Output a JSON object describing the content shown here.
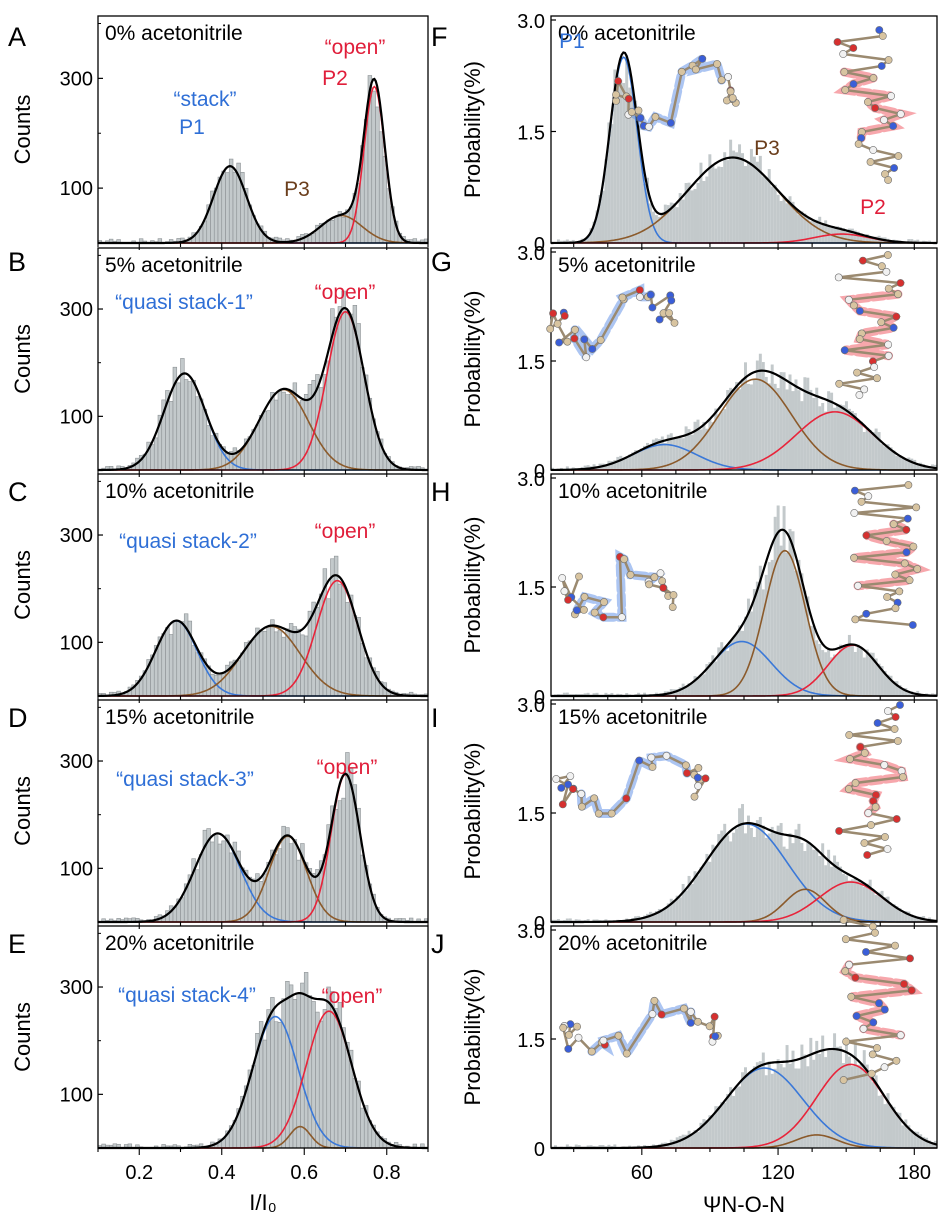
{
  "colors": {
    "hist_fill": "#c3c9cb",
    "hist_outline": "#8c9194",
    "total": "#000000",
    "blue": "#3a78d8",
    "red": "#e8243a",
    "brown": "#8b5a2b",
    "blue_text": "#2f6fd6",
    "red_text": "#e01e3a",
    "brown_text": "#6b3e1c"
  },
  "left_axes": {
    "ylabel": "Counts",
    "xlabel": "I/I₀",
    "yticks": [
      100,
      300
    ],
    "xticks": [
      "0.2",
      "0.4",
      "0.6",
      "0.8"
    ],
    "xlim": [
      0.1,
      0.9
    ],
    "ylim": [
      0,
      400
    ]
  },
  "right_axes": {
    "ylabel": "Probability(%)",
    "xlabel": "ΨN-O-N",
    "yticks": [
      "0",
      "1.5",
      "3.0"
    ],
    "xticks": [
      "60",
      "120",
      "180"
    ],
    "xlim": [
      20,
      190
    ],
    "ylim": [
      0,
      3.0
    ]
  },
  "chart_data": [
    {
      "panel": "A",
      "type": "bar",
      "condition": "0%  acetonitrile",
      "title": "0%  acetonitrile",
      "xlabel": "I/I₀",
      "ylabel": "Counts",
      "series": [
        {
          "name": "P1",
          "peak_x": 0.42,
          "sigma": 0.04,
          "amplitude": 140,
          "color": "blue"
        },
        {
          "name": "P3",
          "peak_x": 0.69,
          "sigma": 0.05,
          "amplitude": 50,
          "color": "brown"
        },
        {
          "name": "P2",
          "peak_x": 0.77,
          "sigma": 0.025,
          "amplitude": 285,
          "color": "red"
        }
      ],
      "annotations": [
        {
          "text": "“stack”",
          "color": "blue"
        },
        {
          "text": "P1",
          "color": "blue"
        },
        {
          "text": "P3",
          "color": "brown"
        },
        {
          "text": "“open”",
          "color": "red"
        },
        {
          "text": "P2",
          "color": "red"
        }
      ]
    },
    {
      "panel": "B",
      "type": "bar",
      "condition": "5%  acetonitrile",
      "title": "5%  acetonitrile",
      "xlabel": "I/I₀",
      "ylabel": "Counts",
      "series": [
        {
          "peak_x": 0.31,
          "sigma": 0.05,
          "amplitude": 180,
          "color": "blue"
        },
        {
          "peak_x": 0.55,
          "sigma": 0.06,
          "amplitude": 150,
          "color": "brown"
        },
        {
          "peak_x": 0.7,
          "sigma": 0.045,
          "amplitude": 295,
          "color": "red"
        }
      ],
      "annotations": [
        {
          "text": "“quasi stack-1”",
          "color": "blue"
        },
        {
          "text": "“open”",
          "color": "red"
        }
      ]
    },
    {
      "panel": "C",
      "type": "bar",
      "condition": "10%  acetonitrile",
      "title": "10%  acetonitrile",
      "xlabel": "I/I₀",
      "ylabel": "Counts",
      "series": [
        {
          "peak_x": 0.29,
          "sigma": 0.05,
          "amplitude": 140,
          "color": "blue"
        },
        {
          "peak_x": 0.52,
          "sigma": 0.07,
          "amplitude": 130,
          "color": "brown"
        },
        {
          "peak_x": 0.68,
          "sigma": 0.05,
          "amplitude": 215,
          "color": "red"
        }
      ],
      "annotations": [
        {
          "text": "“quasi stack-2”",
          "color": "blue"
        },
        {
          "text": "“open”",
          "color": "red"
        }
      ]
    },
    {
      "panel": "D",
      "type": "bar",
      "condition": "15%  acetonitrile",
      "title": "15%  acetonitrile",
      "xlabel": "I/I₀",
      "ylabel": "Counts",
      "series": [
        {
          "peak_x": 0.39,
          "sigma": 0.055,
          "amplitude": 165,
          "color": "blue"
        },
        {
          "peak_x": 0.56,
          "sigma": 0.045,
          "amplitude": 160,
          "color": "brown"
        },
        {
          "peak_x": 0.7,
          "sigma": 0.035,
          "amplitude": 275,
          "color": "red"
        }
      ],
      "annotations": [
        {
          "text": "“quasi stack-3”",
          "color": "blue"
        },
        {
          "text": "“open”",
          "color": "red"
        }
      ]
    },
    {
      "panel": "E",
      "type": "bar",
      "condition": "20%  acetonitrile",
      "title": "20%  acetonitrile",
      "xlabel": "I/I₀",
      "ylabel": "Counts",
      "series": [
        {
          "peak_x": 0.53,
          "sigma": 0.055,
          "amplitude": 245,
          "color": "blue"
        },
        {
          "peak_x": 0.59,
          "sigma": 0.025,
          "amplitude": 40,
          "color": "brown"
        },
        {
          "peak_x": 0.66,
          "sigma": 0.055,
          "amplitude": 255,
          "color": "red"
        }
      ],
      "annotations": [
        {
          "text": "“quasi stack-4”",
          "color": "blue"
        },
        {
          "text": "“open”",
          "color": "red"
        }
      ]
    },
    {
      "panel": "F",
      "type": "bar",
      "condition": "0%  acetonitrile",
      "title": "0%  acetonitrile",
      "xlabel": "ΨN-O-N",
      "ylabel": "Probability(%)",
      "series": [
        {
          "name": "P1",
          "peak_x": 52,
          "sigma": 6,
          "amplitude": 2.5,
          "color": "blue"
        },
        {
          "name": "P3",
          "peak_x": 100,
          "sigma": 20,
          "amplitude": 1.15,
          "color": "brown"
        },
        {
          "name": "P2",
          "peak_x": 148,
          "sigma": 12,
          "amplitude": 0.12,
          "color": "red"
        }
      ],
      "annotations": [
        {
          "text": "P1",
          "color": "blue"
        },
        {
          "text": "P3",
          "color": "brown"
        },
        {
          "text": "P2",
          "color": "red"
        }
      ]
    },
    {
      "panel": "G",
      "type": "bar",
      "condition": "5%  acetonitrile",
      "title": "5%  acetonitrile",
      "xlabel": "ΨN-O-N",
      "ylabel": "Probability(%)",
      "series": [
        {
          "peak_x": 70,
          "sigma": 14,
          "amplitude": 0.35,
          "color": "blue"
        },
        {
          "peak_x": 110,
          "sigma": 16,
          "amplitude": 1.25,
          "color": "brown"
        },
        {
          "peak_x": 145,
          "sigma": 17,
          "amplitude": 0.8,
          "color": "red"
        }
      ],
      "annotations": []
    },
    {
      "panel": "H",
      "type": "bar",
      "condition": "10%  acetonitrile",
      "title": "10%  acetonitrile",
      "xlabel": "ΨN-O-N",
      "ylabel": "Probability(%)",
      "series": [
        {
          "peak_x": 104,
          "sigma": 13,
          "amplitude": 0.75,
          "color": "blue"
        },
        {
          "peak_x": 123,
          "sigma": 9,
          "amplitude": 2.0,
          "color": "brown"
        },
        {
          "peak_x": 153,
          "sigma": 11,
          "amplitude": 0.7,
          "color": "red"
        }
      ],
      "annotations": []
    },
    {
      "panel": "I",
      "type": "bar",
      "condition": "15%  acetonitrile",
      "title": "15%  acetonitrile",
      "xlabel": "ΨN-O-N",
      "ylabel": "Probability(%)",
      "series": [
        {
          "peak_x": 106,
          "sigma": 18,
          "amplitude": 1.35,
          "color": "blue"
        },
        {
          "peak_x": 132,
          "sigma": 9,
          "amplitude": 0.45,
          "color": "brown"
        },
        {
          "peak_x": 152,
          "sigma": 14,
          "amplitude": 0.55,
          "color": "red"
        }
      ],
      "annotations": []
    },
    {
      "panel": "J",
      "type": "bar",
      "condition": "20%  acetonitrile",
      "title": "20%  acetonitrile",
      "xlabel": "ΨN-O-N",
      "ylabel": "Probability(%)",
      "series": [
        {
          "peak_x": 114,
          "sigma": 17,
          "amplitude": 1.1,
          "color": "blue"
        },
        {
          "peak_x": 137,
          "sigma": 9,
          "amplitude": 0.18,
          "color": "brown"
        },
        {
          "peak_x": 152,
          "sigma": 15,
          "amplitude": 1.15,
          "color": "red"
        }
      ],
      "annotations": []
    }
  ]
}
